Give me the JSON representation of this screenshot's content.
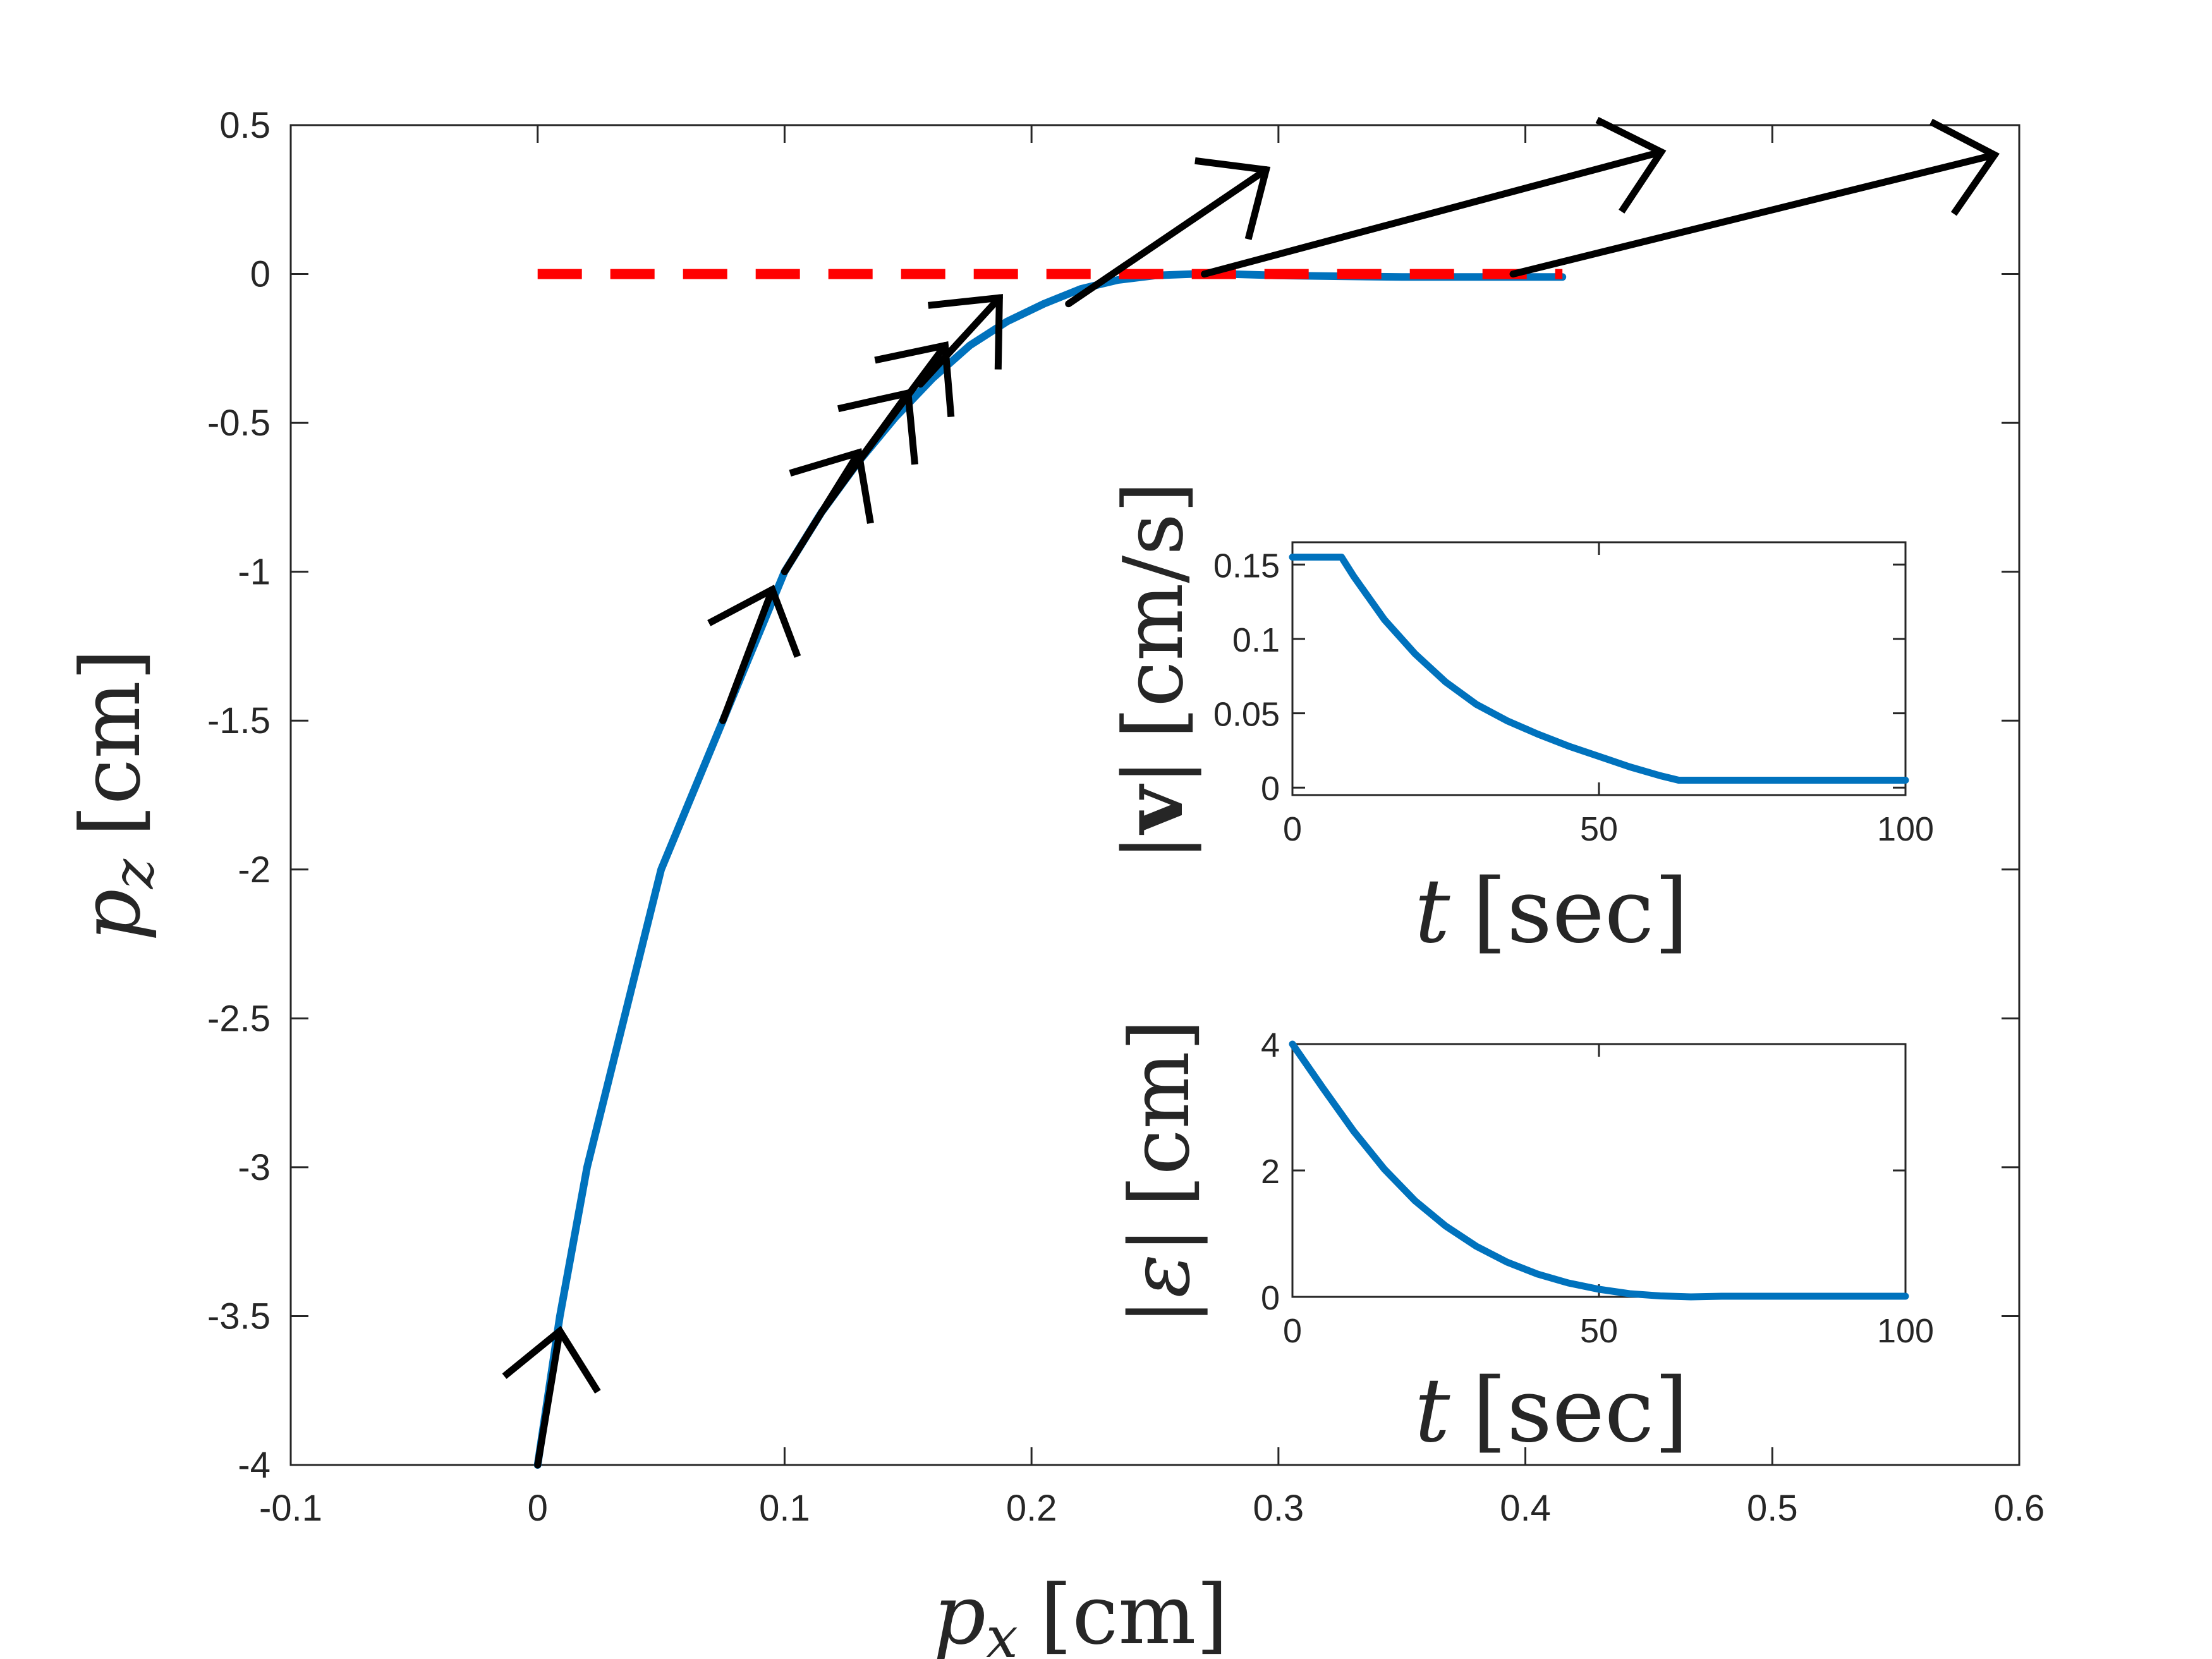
{
  "chart_data": [
    {
      "id": "main",
      "type": "line",
      "xlabel_var": "p",
      "xlabel_sub": "x",
      "xlabel_unit": "[cm]",
      "ylabel_var": "p",
      "ylabel_sub": "z",
      "ylabel_unit": "[cm]",
      "xlim": [
        -0.1,
        0.6
      ],
      "ylim": [
        -4,
        0.5
      ],
      "xticks": [
        -0.1,
        0,
        0.1,
        0.2,
        0.3,
        0.4,
        0.5,
        0.6
      ],
      "xtick_labels": [
        "-0.1",
        "0",
        "0.1",
        "0.2",
        "0.3",
        "0.4",
        "0.5",
        "0.6"
      ],
      "yticks": [
        0.5,
        0,
        -0.5,
        -1,
        -1.5,
        -2,
        -2.5,
        -3,
        -3.5,
        -4
      ],
      "ytick_labels": [
        "0.5",
        "0",
        "-0.5",
        "-1",
        "-1.5",
        "-2",
        "-2.5",
        "-3",
        "-3.5",
        "-4"
      ],
      "colors": {
        "trajectory": "#0072BD",
        "reference": "#FF0000",
        "arrows": "#000000",
        "axes": "#262626"
      },
      "series": [
        {
          "name": "trajectory",
          "style": "solid",
          "x": [
            0.0,
            0.009,
            0.02,
            0.035,
            0.05,
            0.065,
            0.075,
            0.09,
            0.1,
            0.115,
            0.13,
            0.145,
            0.16,
            0.175,
            0.19,
            0.205,
            0.22,
            0.235,
            0.25,
            0.265,
            0.28,
            0.3,
            0.35,
            0.415
          ],
          "y": [
            -4.0,
            -3.5,
            -3.0,
            -2.5,
            -2.0,
            -1.7,
            -1.5,
            -1.2,
            -1.0,
            -0.8,
            -0.63,
            -0.48,
            -0.35,
            -0.24,
            -0.16,
            -0.1,
            -0.05,
            -0.02,
            -0.005,
            0.0,
            0.0,
            -0.005,
            -0.01,
            -0.01
          ]
        },
        {
          "name": "reference",
          "style": "dashed",
          "x": [
            0.0,
            0.415
          ],
          "y": [
            0.0,
            0.0
          ]
        }
      ],
      "arrows": [
        {
          "x0": 0.0,
          "y0": -4.0,
          "x1": 0.009,
          "y1": -3.55
        },
        {
          "x0": 0.075,
          "y0": -1.5,
          "x1": 0.095,
          "y1": -1.06
        },
        {
          "x0": 0.1,
          "y0": -1.0,
          "x1": 0.13,
          "y1": -0.6
        },
        {
          "x0": 0.115,
          "y0": -0.8,
          "x1": 0.15,
          "y1": -0.4
        },
        {
          "x0": 0.13,
          "y0": -0.63,
          "x1": 0.165,
          "y1": -0.24
        },
        {
          "x0": 0.155,
          "y0": -0.37,
          "x1": 0.187,
          "y1": -0.08
        },
        {
          "x0": 0.215,
          "y0": -0.1,
          "x1": 0.295,
          "y1": 0.35
        },
        {
          "x0": 0.27,
          "y0": 0.0,
          "x1": 0.455,
          "y1": 0.41
        },
        {
          "x0": 0.395,
          "y0": 0.0,
          "x1": 0.59,
          "y1": 0.4
        }
      ]
    },
    {
      "id": "inset-speed",
      "type": "line",
      "ylabel": "|v| [cm/s]",
      "ylabel_vbar": "|",
      "ylabel_var": "v",
      "ylabel_unit": "[cm/s]",
      "xlabel_var": "t",
      "xlabel_unit": "[sec]",
      "xlim": [
        0,
        100
      ],
      "ylim": [
        -0.005,
        0.165
      ],
      "xticks": [
        0,
        50,
        100
      ],
      "xtick_labels": [
        "0",
        "50",
        "100"
      ],
      "yticks": [
        0,
        0.05,
        0.1,
        0.15
      ],
      "ytick_labels": [
        "0",
        "0.05",
        "0.1",
        "0.15"
      ],
      "series": [
        {
          "name": "speed",
          "x": [
            0,
            2,
            4,
            6,
            8,
            10,
            15,
            20,
            25,
            30,
            35,
            40,
            45,
            50,
            55,
            60,
            63,
            65,
            70,
            80,
            90,
            100
          ],
          "y": [
            0.155,
            0.155,
            0.155,
            0.155,
            0.155,
            0.142,
            0.113,
            0.09,
            0.071,
            0.056,
            0.045,
            0.036,
            0.028,
            0.021,
            0.014,
            0.008,
            0.005,
            0.005,
            0.005,
            0.005,
            0.005,
            0.005
          ]
        }
      ]
    },
    {
      "id": "inset-error",
      "type": "line",
      "ylabel": "|ε| [cm]",
      "ylabel_var": "|ε|",
      "ylabel_unit": "[cm]",
      "xlabel_var": "t",
      "xlabel_unit": "[sec]",
      "xlim": [
        0,
        100
      ],
      "ylim": [
        0,
        4
      ],
      "xticks": [
        0,
        50,
        100
      ],
      "xtick_labels": [
        "0",
        "50",
        "100"
      ],
      "yticks": [
        0,
        2,
        4
      ],
      "ytick_labels": [
        "0",
        "2",
        "4"
      ],
      "series": [
        {
          "name": "error",
          "x": [
            0,
            5,
            10,
            15,
            20,
            25,
            30,
            35,
            40,
            45,
            50,
            55,
            60,
            65,
            70,
            80,
            90,
            100
          ],
          "y": [
            4.0,
            3.3,
            2.62,
            2.02,
            1.52,
            1.12,
            0.8,
            0.55,
            0.36,
            0.22,
            0.12,
            0.05,
            0.015,
            0.0,
            0.01,
            0.01,
            0.01,
            0.01
          ]
        }
      ]
    }
  ]
}
